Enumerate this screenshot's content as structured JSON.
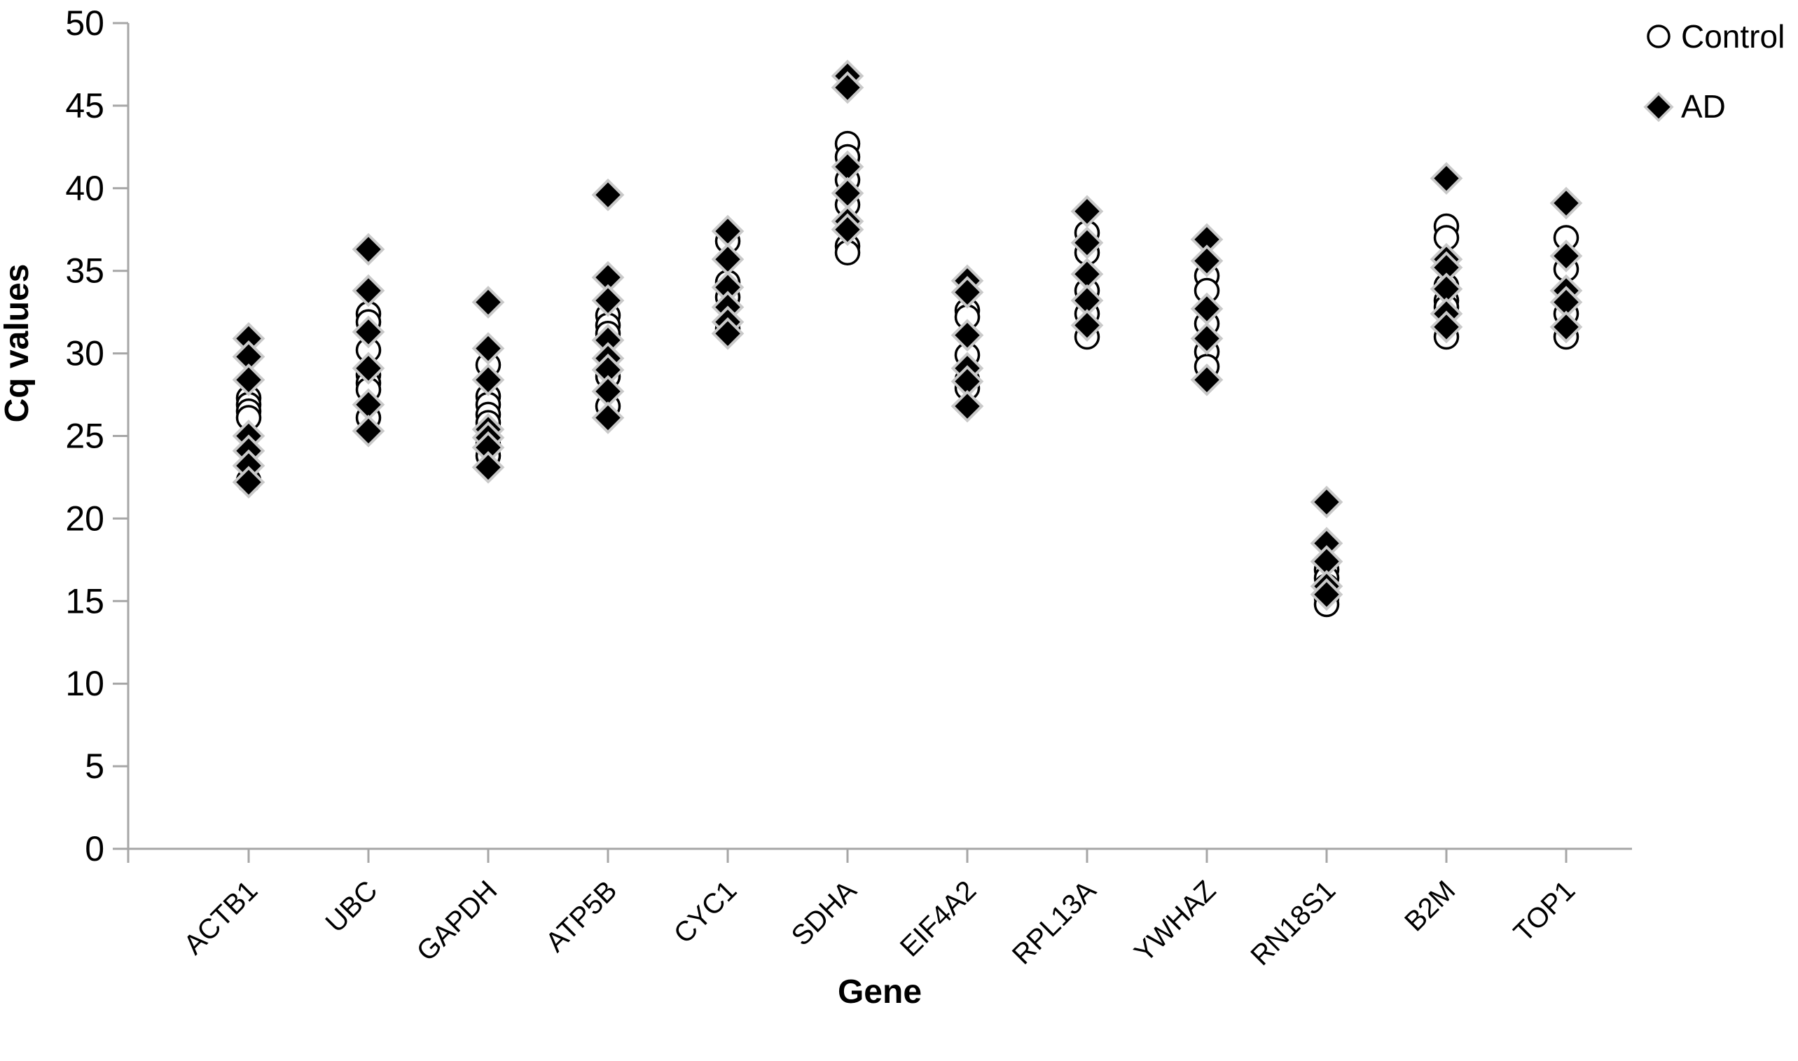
{
  "legend": {
    "items": [
      {
        "label": "Control",
        "marker": "open-circle"
      },
      {
        "label": "AD",
        "marker": "filled-diamond"
      }
    ],
    "position": "top-right"
  },
  "colors": {
    "background": "#ffffff",
    "axis_line": "#a6a6a6",
    "text": "#000000",
    "control_fill": "#ffffff",
    "control_stroke": "#000000",
    "ad_fill": "#000000",
    "ad_stroke": "#c9c9c9"
  },
  "chart_data": {
    "type": "scatter",
    "title": "",
    "xlabel": "Gene",
    "ylabel": "Cq values",
    "ylim": [
      0,
      50
    ],
    "y_ticks": [
      0,
      5,
      10,
      15,
      20,
      25,
      30,
      35,
      40,
      45,
      50
    ],
    "grid": false,
    "legend_position": "top-right",
    "categories": [
      "ACTB1",
      "UBC",
      "GAPDH",
      "ATP5B",
      "CYC1",
      "SDHA",
      "EIF4A2",
      "RPL13A",
      "YWHAZ",
      "RN18S1",
      "B2M",
      "TOP1"
    ],
    "series": [
      {
        "name": "Control",
        "marker": "open-circle",
        "values": [
          [
            27.3,
            26.9,
            26.5,
            26.1,
            22.3
          ],
          [
            32.4,
            31.9,
            30.2,
            28.7,
            28.2,
            27.8,
            26.1
          ],
          [
            29.3,
            27.4,
            26.9,
            26.3,
            25.8,
            24.5,
            23.8
          ],
          [
            32.3,
            31.7,
            31.2,
            28.6,
            26.8
          ],
          [
            36.8,
            34.3,
            33.4,
            31.5
          ],
          [
            42.7,
            41.9,
            40.5,
            39.0,
            36.5,
            36.1
          ],
          [
            32.6,
            32.2,
            29.9,
            28.4,
            27.9
          ],
          [
            37.3,
            36.1,
            33.8,
            32.4,
            31.0
          ],
          [
            34.7,
            33.8,
            31.8,
            30.1,
            29.2
          ],
          [
            16.9,
            16.4,
            15.9,
            15.2,
            14.8
          ],
          [
            37.7,
            37.0,
            34.1,
            33.2,
            32.8,
            31.0
          ],
          [
            37.0,
            35.1,
            32.4,
            31.0
          ]
        ]
      },
      {
        "name": "AD",
        "marker": "filled-diamond",
        "values": [
          [
            30.9,
            29.8,
            28.4,
            25.0,
            24.1,
            23.2,
            22.2
          ],
          [
            36.3,
            33.8,
            31.3,
            29.1,
            26.9,
            25.3
          ],
          [
            33.1,
            30.3,
            28.4,
            25.4,
            24.9,
            24.3,
            23.1
          ],
          [
            39.6,
            34.6,
            33.2,
            30.8,
            29.7,
            29.0,
            27.7,
            26.1
          ],
          [
            37.4,
            35.7,
            34.0,
            32.8,
            31.9,
            31.2
          ],
          [
            46.8,
            46.1,
            41.3,
            39.7,
            38.0,
            37.5
          ],
          [
            34.4,
            33.7,
            31.1,
            29.1,
            28.3,
            26.8
          ],
          [
            38.6,
            36.7,
            34.8,
            33.2,
            31.7
          ],
          [
            36.9,
            35.6,
            32.7,
            30.9,
            28.4
          ],
          [
            21.0,
            18.5,
            17.4,
            15.9,
            15.4
          ],
          [
            40.6,
            35.7,
            35.2,
            33.9,
            32.4,
            31.6
          ],
          [
            39.1,
            35.9,
            33.8,
            33.1,
            31.6
          ]
        ]
      }
    ]
  }
}
